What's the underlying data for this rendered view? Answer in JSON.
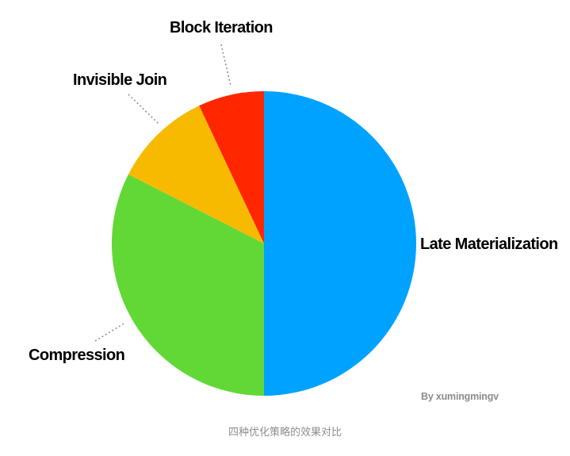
{
  "chart_data": {
    "type": "pie",
    "slices": [
      {
        "label": "Late  Materialization",
        "value": 50,
        "color": "#00A2FF"
      },
      {
        "label": "Compression",
        "value": 32.5,
        "color": "#61D836"
      },
      {
        "label": "Invisible Join",
        "value": 10.5,
        "color": "#F8BA00"
      },
      {
        "label": "Block Iteration",
        "value": 7,
        "color": "#FF2600"
      }
    ],
    "start_angle_deg": 0,
    "direction": "clockwise",
    "legend": "none"
  },
  "watermark": "By  xumingmingv",
  "caption": "四种优化策略的效果对比"
}
